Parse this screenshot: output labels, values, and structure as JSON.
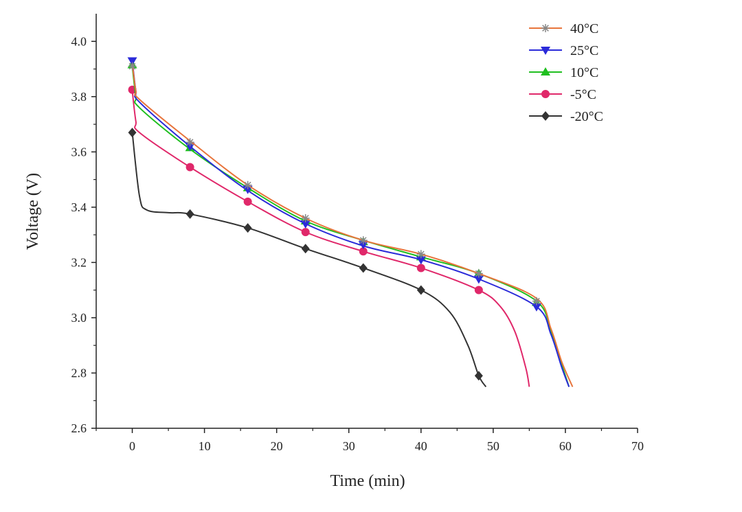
{
  "chart_data": {
    "type": "line",
    "xlabel": "Time (min)",
    "ylabel": "Voltage (V)",
    "xlim": [
      -5,
      70
    ],
    "ylim": [
      2.6,
      4.1
    ],
    "xticks": [
      0,
      10,
      20,
      30,
      40,
      50,
      60,
      70
    ],
    "yticks": [
      2.6,
      2.8,
      3.0,
      3.2,
      3.4,
      3.6,
      3.8,
      4.0
    ],
    "xtick_labels": [
      "0",
      "10",
      "20",
      "30",
      "40",
      "50",
      "60",
      "70"
    ],
    "ytick_labels": [
      "2.6",
      "2.8",
      "3.0",
      "3.2",
      "3.4",
      "3.6",
      "3.8",
      "4.0"
    ],
    "grid": false,
    "legend_position": "top-right",
    "series": [
      {
        "name": "40°C",
        "color": "#e8743b",
        "marker": "asterisk",
        "marker_color": "#888888",
        "curve": [
          [
            0,
            3.92
          ],
          [
            0.5,
            3.82
          ],
          [
            1,
            3.79
          ],
          [
            8,
            3.64
          ],
          [
            16,
            3.48
          ],
          [
            24,
            3.36
          ],
          [
            32,
            3.28
          ],
          [
            40,
            3.23
          ],
          [
            48,
            3.16
          ],
          [
            56,
            3.07
          ],
          [
            58,
            2.96
          ],
          [
            59.5,
            2.84
          ],
          [
            61,
            2.75
          ]
        ],
        "markers": [
          [
            0,
            3.91
          ],
          [
            8,
            3.635
          ],
          [
            16,
            3.48
          ],
          [
            24,
            3.36
          ],
          [
            32,
            3.28
          ],
          [
            40,
            3.23
          ],
          [
            48,
            3.16
          ],
          [
            56,
            3.06
          ]
        ]
      },
      {
        "name": "25°C",
        "color": "#2b2bd9",
        "marker": "triangle-down",
        "marker_color": "#2b2bd9",
        "curve": [
          [
            0,
            3.93
          ],
          [
            0.5,
            3.82
          ],
          [
            1,
            3.78
          ],
          [
            8,
            3.62
          ],
          [
            16,
            3.46
          ],
          [
            24,
            3.34
          ],
          [
            32,
            3.26
          ],
          [
            40,
            3.21
          ],
          [
            48,
            3.14
          ],
          [
            56,
            3.04
          ],
          [
            58,
            2.94
          ],
          [
            59.5,
            2.82
          ],
          [
            60.5,
            2.75
          ]
        ],
        "markers": [
          [
            0,
            3.93
          ],
          [
            8,
            3.62
          ],
          [
            16,
            3.465
          ],
          [
            24,
            3.34
          ],
          [
            32,
            3.265
          ],
          [
            40,
            3.21
          ],
          [
            48,
            3.14
          ],
          [
            56,
            3.04
          ]
        ]
      },
      {
        "name": "10°C",
        "color": "#1fbf1f",
        "marker": "triangle-up",
        "marker_color": "#1fbf1f",
        "curve": [
          [
            0,
            3.91
          ],
          [
            0.5,
            3.8
          ],
          [
            1,
            3.76
          ],
          [
            8,
            3.61
          ],
          [
            16,
            3.47
          ],
          [
            24,
            3.35
          ],
          [
            32,
            3.28
          ],
          [
            40,
            3.22
          ],
          [
            48,
            3.16
          ],
          [
            56,
            3.06
          ],
          [
            58,
            2.95
          ],
          [
            59.5,
            2.83
          ],
          [
            60.5,
            2.75
          ]
        ],
        "markers": [
          [
            0,
            3.915
          ],
          [
            8,
            3.615
          ],
          [
            16,
            3.47
          ],
          [
            24,
            3.35
          ],
          [
            32,
            3.275
          ],
          [
            40,
            3.22
          ],
          [
            48,
            3.16
          ],
          [
            56,
            3.055
          ]
        ]
      },
      {
        "name": "-5°C",
        "color": "#e0286a",
        "marker": "circle",
        "marker_color": "#e0286a",
        "curve": [
          [
            0,
            3.82
          ],
          [
            0.5,
            3.71
          ],
          [
            1,
            3.67
          ],
          [
            8,
            3.545
          ],
          [
            16,
            3.42
          ],
          [
            24,
            3.31
          ],
          [
            32,
            3.24
          ],
          [
            40,
            3.18
          ],
          [
            48,
            3.1
          ],
          [
            51,
            3.04
          ],
          [
            53,
            2.95
          ],
          [
            54.5,
            2.82
          ],
          [
            55,
            2.75
          ]
        ],
        "markers": [
          [
            0,
            3.825
          ],
          [
            8,
            3.545
          ],
          [
            16,
            3.42
          ],
          [
            24,
            3.31
          ],
          [
            32,
            3.24
          ],
          [
            40,
            3.18
          ],
          [
            48,
            3.1
          ]
        ]
      },
      {
        "name": "-20°C",
        "color": "#333333",
        "marker": "diamond",
        "marker_color": "#333333",
        "curve": [
          [
            0,
            3.67
          ],
          [
            1,
            3.44
          ],
          [
            2,
            3.39
          ],
          [
            5,
            3.38
          ],
          [
            8,
            3.375
          ],
          [
            16,
            3.325
          ],
          [
            24,
            3.25
          ],
          [
            32,
            3.18
          ],
          [
            40,
            3.1
          ],
          [
            44,
            3.02
          ],
          [
            46.5,
            2.9
          ],
          [
            48,
            2.79
          ],
          [
            49,
            2.75
          ]
        ],
        "markers": [
          [
            0,
            3.67
          ],
          [
            8,
            3.375
          ],
          [
            16,
            3.325
          ],
          [
            24,
            3.25
          ],
          [
            32,
            3.18
          ],
          [
            40,
            3.1
          ],
          [
            48,
            2.79
          ]
        ]
      }
    ]
  }
}
